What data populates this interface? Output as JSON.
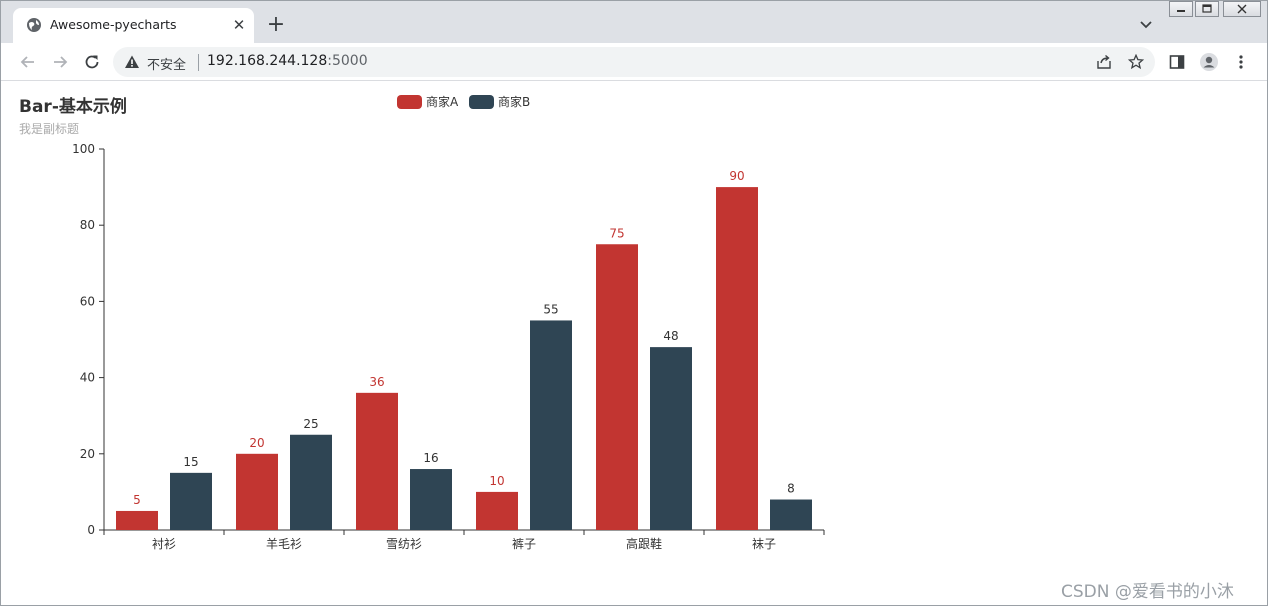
{
  "browser": {
    "tab_title": "Awesome-pyecharts",
    "tab_close": "✕",
    "new_tab": "+",
    "insecure_label": "不安全",
    "url_host": "192.168.244.128",
    "url_port": ":5000"
  },
  "page": {
    "watermark": "CSDN @爱看书的小沐"
  },
  "chart_data": {
    "type": "bar",
    "title": "Bar-基本示例",
    "subtitle": "我是副标题",
    "categories": [
      "衬衫",
      "羊毛衫",
      "雪纺衫",
      "裤子",
      "高跟鞋",
      "袜子"
    ],
    "series": [
      {
        "name": "商家A",
        "values": [
          5,
          20,
          36,
          10,
          75,
          90
        ],
        "color": "#c23531"
      },
      {
        "name": "商家B",
        "values": [
          15,
          25,
          16,
          55,
          48,
          8
        ],
        "color": "#2f4554"
      }
    ],
    "ylim": [
      0,
      100
    ],
    "yticks": [
      0,
      20,
      40,
      60,
      80,
      100
    ],
    "grid": false,
    "legend_position": "top-center",
    "xlabel": "",
    "ylabel": ""
  }
}
